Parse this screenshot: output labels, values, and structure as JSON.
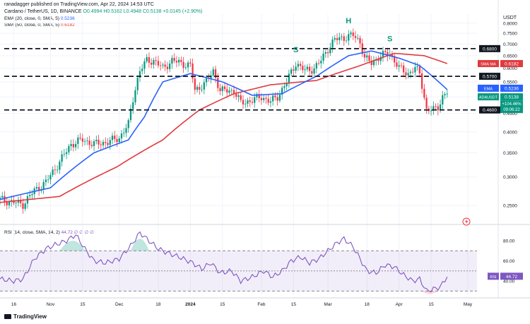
{
  "header": {
    "published_by": "ranadagger published on TradingView.com, Apr 22, 2024 14:53 UTC",
    "symbol_line": "Cardano / TetherUS, 1D, BINANCE",
    "ohlc": "O0.4994 H0.5162 L0.4948 C0.5138 +0.0145 (+2.90%)",
    "ema_legend": "EMA (20, close, 0, SMA, 5)",
    "ema_value": "0.5236",
    "sma_legend": "SMA (50, close, 0, SMA, 5)",
    "sma_value": "0.6182",
    "rsi_legend": "RSI (14, close, SMA, 14, 2)",
    "rsi_nan": "∅ ∅ ∅ ∅",
    "currency": "USDT"
  },
  "footer": {
    "brand": "TradingView"
  },
  "colors": {
    "up": "#089981",
    "down": "#f23645",
    "ema": "#2962ff",
    "sma": "#e03a3e",
    "rsi": "#7e57c2",
    "level": "#131722",
    "pattern_label": "#089981"
  },
  "chart_data": [
    {
      "type": "candlestick",
      "title": "Cardano / TetherUS, 1D, BINANCE",
      "y_axis": {
        "scale": "log",
        "ticks": [
          "0.8000",
          "0.7500",
          "0.7000",
          "0.6500",
          "0.6000",
          "0.5500",
          "0.5000",
          "0.4500",
          "0.4000",
          "0.3500",
          "0.3000",
          "0.2500"
        ],
        "ylim": [
          0.235,
          0.81
        ]
      },
      "x_axis": {
        "ticks": [
          "16",
          "Nov",
          "15",
          "Dec",
          "18",
          "2024",
          "15",
          "Feb",
          "15",
          "Mar",
          "18",
          "Apr",
          "15",
          "May"
        ],
        "range": [
          "2023-10-10",
          "2024-05-05"
        ]
      },
      "levels": [
        {
          "label": "0.6800",
          "value": 0.68
        },
        {
          "label": "0.5700",
          "value": 0.57
        },
        {
          "label": "0.4600",
          "value": 0.46
        }
      ],
      "price_labels": [
        {
          "label": "SMA:MA",
          "value": "0.6182"
        },
        {
          "label": "EMA",
          "value": "0.5236"
        },
        {
          "label": "ADAUSDT",
          "value": "0.5138"
        },
        {
          "label": "+104.46%",
          "value": ""
        },
        {
          "label": "09:06:22",
          "value": ""
        }
      ],
      "annotations": [
        {
          "text": "S",
          "date": "2024-02-16",
          "price": 0.665
        },
        {
          "text": "H",
          "date": "2024-03-10",
          "price": 0.8
        },
        {
          "text": "S",
          "date": "2024-03-28",
          "price": 0.712
        }
      ],
      "price_keypoints": [
        [
          "2023-10-10",
          0.26
        ],
        [
          "2023-10-16",
          0.255
        ],
        [
          "2023-10-20",
          0.252
        ],
        [
          "2023-10-25",
          0.275
        ],
        [
          "2023-10-30",
          0.29
        ],
        [
          "2023-11-05",
          0.33
        ],
        [
          "2023-11-10",
          0.37
        ],
        [
          "2023-11-15",
          0.38
        ],
        [
          "2023-11-20",
          0.37
        ],
        [
          "2023-11-26",
          0.375
        ],
        [
          "2023-12-01",
          0.385
        ],
        [
          "2023-12-05",
          0.42
        ],
        [
          "2023-12-08",
          0.53
        ],
        [
          "2023-12-10",
          0.59
        ],
        [
          "2023-12-13",
          0.63
        ],
        [
          "2023-12-16",
          0.63
        ],
        [
          "2023-12-20",
          0.6
        ],
        [
          "2023-12-24",
          0.63
        ],
        [
          "2023-12-28",
          0.62
        ],
        [
          "2024-01-01",
          0.61
        ],
        [
          "2024-01-03",
          0.52
        ],
        [
          "2024-01-08",
          0.55
        ],
        [
          "2024-01-11",
          0.59
        ],
        [
          "2024-01-14",
          0.52
        ],
        [
          "2024-01-20",
          0.52
        ],
        [
          "2024-01-23",
          0.48
        ],
        [
          "2024-01-28",
          0.49
        ],
        [
          "2024-02-01",
          0.5
        ],
        [
          "2024-02-05",
          0.485
        ],
        [
          "2024-02-08",
          0.5
        ],
        [
          "2024-02-12",
          0.55
        ],
        [
          "2024-02-16",
          0.62
        ],
        [
          "2024-02-20",
          0.59
        ],
        [
          "2024-02-24",
          0.6
        ],
        [
          "2024-02-27",
          0.63
        ],
        [
          "2024-03-01",
          0.68
        ],
        [
          "2024-03-04",
          0.72
        ],
        [
          "2024-03-08",
          0.73
        ],
        [
          "2024-03-12",
          0.74
        ],
        [
          "2024-03-15",
          0.71
        ],
        [
          "2024-03-17",
          0.64
        ],
        [
          "2024-03-20",
          0.62
        ],
        [
          "2024-03-24",
          0.65
        ],
        [
          "2024-03-28",
          0.66
        ],
        [
          "2024-04-01",
          0.6
        ],
        [
          "2024-04-05",
          0.58
        ],
        [
          "2024-04-08",
          0.6
        ],
        [
          "2024-04-10",
          0.58
        ],
        [
          "2024-04-13",
          0.46
        ],
        [
          "2024-04-16",
          0.46
        ],
        [
          "2024-04-18",
          0.47
        ],
        [
          "2024-04-20",
          0.5
        ],
        [
          "2024-04-22",
          0.5138
        ]
      ],
      "ema20_keypoints": [
        [
          "2023-10-10",
          0.26
        ],
        [
          "2023-11-01",
          0.28
        ],
        [
          "2023-11-20",
          0.35
        ],
        [
          "2023-12-05",
          0.38
        ],
        [
          "2023-12-12",
          0.44
        ],
        [
          "2023-12-20",
          0.55
        ],
        [
          "2024-01-01",
          0.58
        ],
        [
          "2024-01-15",
          0.55
        ],
        [
          "2024-01-28",
          0.505
        ],
        [
          "2024-02-10",
          0.51
        ],
        [
          "2024-02-25",
          0.57
        ],
        [
          "2024-03-10",
          0.65
        ],
        [
          "2024-03-20",
          0.67
        ],
        [
          "2024-04-01",
          0.64
        ],
        [
          "2024-04-10",
          0.61
        ],
        [
          "2024-04-22",
          0.5236
        ]
      ],
      "sma50_keypoints": [
        [
          "2023-10-10",
          0.255
        ],
        [
          "2023-11-05",
          0.265
        ],
        [
          "2023-11-30",
          0.32
        ],
        [
          "2023-12-20",
          0.38
        ],
        [
          "2024-01-05",
          0.46
        ],
        [
          "2024-01-20",
          0.51
        ],
        [
          "2024-02-05",
          0.54
        ],
        [
          "2024-02-25",
          0.555
        ],
        [
          "2024-03-15",
          0.61
        ],
        [
          "2024-03-30",
          0.66
        ],
        [
          "2024-04-12",
          0.65
        ],
        [
          "2024-04-22",
          0.6182
        ]
      ]
    },
    {
      "type": "line",
      "title": "RSI (14, close, SMA, 14, 2)",
      "y_axis": {
        "ticks": [
          "80.00",
          "60.00",
          "40.00"
        ],
        "ylim": [
          26,
          92
        ]
      },
      "bands": {
        "upper": 70,
        "mid": 50,
        "lower": 30
      },
      "last_value": "44.72",
      "rsi_keypoints": [
        [
          "2023-10-10",
          42
        ],
        [
          "2023-10-16",
          40
        ],
        [
          "2023-10-20",
          42
        ],
        [
          "2023-10-25",
          62
        ],
        [
          "2023-10-30",
          72
        ],
        [
          "2023-11-03",
          76
        ],
        [
          "2023-11-08",
          80
        ],
        [
          "2023-11-12",
          86
        ],
        [
          "2023-11-16",
          72
        ],
        [
          "2023-11-20",
          60
        ],
        [
          "2023-11-25",
          58
        ],
        [
          "2023-12-01",
          62
        ],
        [
          "2023-12-06",
          75
        ],
        [
          "2023-12-10",
          88
        ],
        [
          "2023-12-13",
          82
        ],
        [
          "2023-12-18",
          72
        ],
        [
          "2023-12-22",
          68
        ],
        [
          "2023-12-27",
          64
        ],
        [
          "2024-01-02",
          58
        ],
        [
          "2024-01-06",
          52
        ],
        [
          "2024-01-10",
          58
        ],
        [
          "2024-01-14",
          48
        ],
        [
          "2024-01-19",
          50
        ],
        [
          "2024-01-23",
          40
        ],
        [
          "2024-01-28",
          44
        ],
        [
          "2024-02-02",
          50
        ],
        [
          "2024-02-06",
          44
        ],
        [
          "2024-02-10",
          50
        ],
        [
          "2024-02-14",
          60
        ],
        [
          "2024-02-18",
          64
        ],
        [
          "2024-02-22",
          58
        ],
        [
          "2024-02-26",
          62
        ],
        [
          "2024-03-01",
          70
        ],
        [
          "2024-03-05",
          78
        ],
        [
          "2024-03-08",
          82
        ],
        [
          "2024-03-12",
          74
        ],
        [
          "2024-03-15",
          62
        ],
        [
          "2024-03-18",
          50
        ],
        [
          "2024-03-22",
          48
        ],
        [
          "2024-03-26",
          56
        ],
        [
          "2024-03-30",
          54
        ],
        [
          "2024-04-03",
          46
        ],
        [
          "2024-04-07",
          40
        ],
        [
          "2024-04-10",
          42
        ],
        [
          "2024-04-13",
          30
        ],
        [
          "2024-04-16",
          32
        ],
        [
          "2024-04-19",
          34
        ],
        [
          "2024-04-22",
          44.72
        ]
      ]
    }
  ]
}
